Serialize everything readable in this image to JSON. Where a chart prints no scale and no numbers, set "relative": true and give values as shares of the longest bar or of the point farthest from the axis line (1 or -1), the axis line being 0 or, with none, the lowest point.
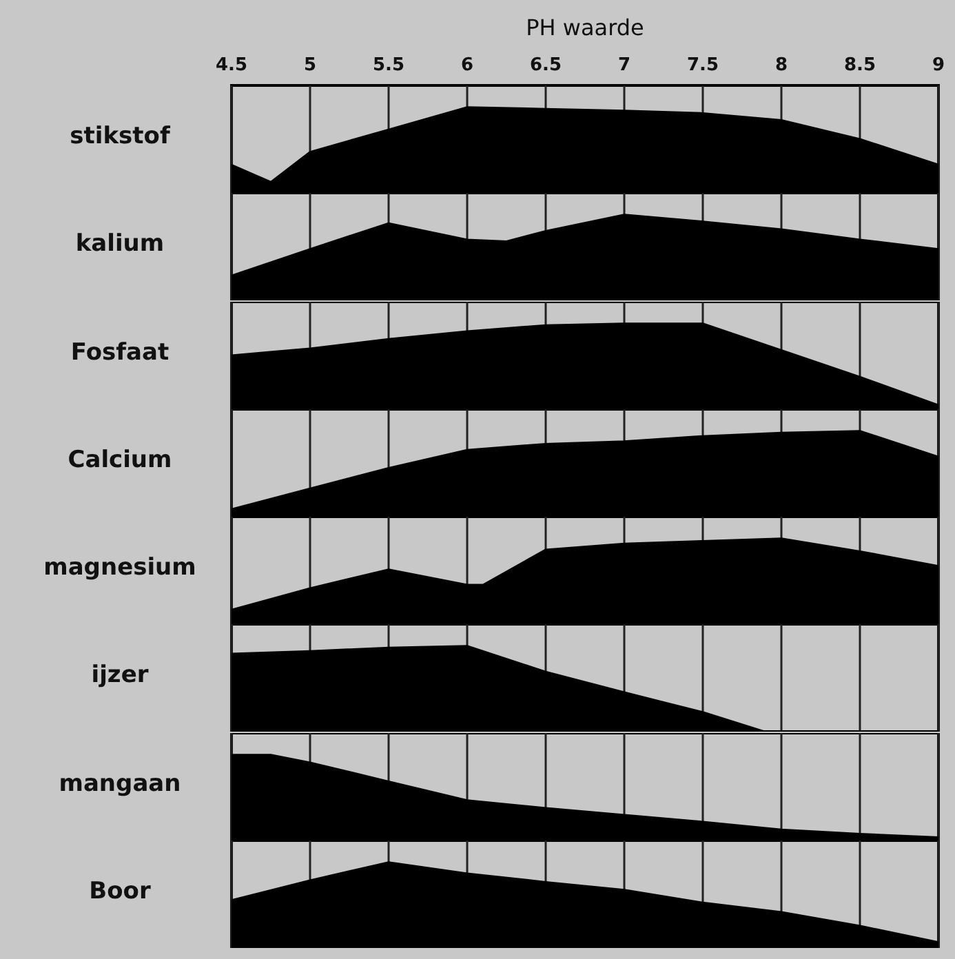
{
  "chart_data": [
    {
      "type": "area",
      "title": "stikstof",
      "xlabel": "PH waarde",
      "relative": true,
      "color": "#000000",
      "x": [
        4.5,
        4.75,
        5,
        5.5,
        6,
        6.5,
        7,
        7.5,
        8,
        8.5,
        9
      ],
      "values": [
        0.33,
        0.13,
        0.48,
        0.74,
        1,
        0.98,
        0.96,
        0.93,
        0.85,
        0.63,
        0.33
      ],
      "xlim": [
        4.5,
        9
      ],
      "xticks": [
        4.5,
        5,
        5.5,
        6,
        6.5,
        7,
        7.5,
        8,
        8.5,
        9
      ],
      "grid": "x",
      "tick_labels": "x"
    },
    {
      "type": "area",
      "title": "kalium",
      "relative": true,
      "color": "#000000",
      "x": [
        4.5,
        5,
        5.5,
        6,
        6.25,
        6.5,
        7,
        7.5,
        8,
        8.5,
        9
      ],
      "values": [
        0.29,
        0.6,
        0.9,
        0.71,
        0.69,
        0.81,
        1,
        0.92,
        0.83,
        0.71,
        0.6
      ],
      "xlim": [
        4.5,
        9
      ],
      "xticks": [
        4.5,
        5,
        5.5,
        6,
        6.5,
        7,
        7.5,
        8,
        8.5,
        9
      ],
      "grid": "x",
      "tick_labels": false
    },
    {
      "type": "area",
      "title": "Fosfaat",
      "relative": true,
      "color": "#000000",
      "x": [
        4.5,
        5,
        5.5,
        6,
        6.5,
        7,
        7.5,
        8,
        8.5,
        9
      ],
      "values": [
        0.63,
        0.71,
        0.82,
        0.91,
        0.98,
        1,
        1,
        0.69,
        0.38,
        0.05
      ],
      "xlim": [
        4.5,
        9
      ],
      "xticks": [
        4.5,
        5,
        5.5,
        6,
        6.5,
        7,
        7.5,
        8,
        8.5,
        9
      ],
      "grid": "x",
      "tick_labels": false
    },
    {
      "type": "area",
      "title": "Calcium",
      "relative": true,
      "color": "#000000",
      "x": [
        4.5,
        5,
        5.5,
        6,
        6.5,
        7,
        7.5,
        8,
        8.5,
        9
      ],
      "values": [
        0.09,
        0.33,
        0.57,
        0.78,
        0.85,
        0.88,
        0.94,
        0.98,
        1,
        0.7
      ],
      "xlim": [
        4.5,
        9
      ],
      "xticks": [
        4.5,
        5,
        5.5,
        6,
        6.5,
        7,
        7.5,
        8,
        8.5,
        9
      ],
      "grid": "x",
      "tick_labels": false
    },
    {
      "type": "area",
      "title": "magnesium",
      "relative": true,
      "color": "#000000",
      "x": [
        4.5,
        5,
        5.5,
        6,
        6.1,
        6.5,
        7,
        7.5,
        8,
        8.5,
        9
      ],
      "values": [
        0.17,
        0.42,
        0.64,
        0.46,
        0.46,
        0.87,
        0.94,
        0.97,
        1,
        0.85,
        0.68
      ],
      "xlim": [
        4.5,
        9
      ],
      "xticks": [
        4.5,
        5,
        5.5,
        6,
        6.5,
        7,
        7.5,
        8,
        8.5,
        9
      ],
      "grid": "x",
      "tick_labels": false
    },
    {
      "type": "area",
      "title": "ijzer",
      "relative": true,
      "color": "#000000",
      "x": [
        4.5,
        5,
        5.5,
        6,
        6.5,
        7,
        7.5,
        7.9,
        8,
        8.5,
        9
      ],
      "values": [
        0.91,
        0.94,
        0.98,
        1,
        0.7,
        0.46,
        0.23,
        0,
        0,
        0,
        0
      ],
      "xlim": [
        4.5,
        9
      ],
      "xticks": [
        4.5,
        5,
        5.5,
        6,
        6.5,
        7,
        7.5,
        8,
        8.5,
        9
      ],
      "grid": "x",
      "tick_labels": false
    },
    {
      "type": "area",
      "title": "mangaan",
      "relative": true,
      "color": "#000000",
      "x": [
        4.5,
        4.75,
        5,
        5.5,
        6,
        6.5,
        7,
        7.5,
        8,
        8.5,
        9
      ],
      "values": [
        1,
        1,
        0.91,
        0.69,
        0.47,
        0.38,
        0.3,
        0.22,
        0.13,
        0.08,
        0.04
      ],
      "xlim": [
        4.5,
        9
      ],
      "xticks": [
        4.5,
        5,
        5.5,
        6,
        6.5,
        7,
        7.5,
        8,
        8.5,
        9
      ],
      "grid": "x",
      "tick_labels": false
    },
    {
      "type": "area",
      "title": "Boor",
      "relative": true,
      "color": "#000000",
      "x": [
        4.5,
        5,
        5.5,
        6,
        6.5,
        7,
        7.5,
        8,
        8.5,
        9
      ],
      "values": [
        0.56,
        0.79,
        1,
        0.87,
        0.77,
        0.68,
        0.53,
        0.42,
        0.26,
        0.07
      ],
      "xlim": [
        4.5,
        9
      ],
      "xticks": [
        4.5,
        5,
        5.5,
        6,
        6.5,
        7,
        7.5,
        8,
        8.5,
        9
      ],
      "grid": "x",
      "tick_labels": false
    }
  ]
}
